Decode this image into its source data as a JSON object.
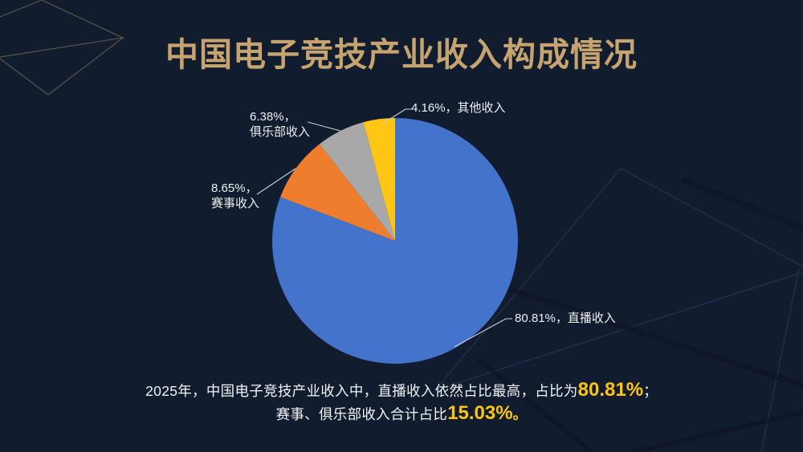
{
  "title": "中国电子竞技产业收入构成情况",
  "chart_data": {
    "type": "pie",
    "title": "中国电子竞技产业收入构成情况",
    "start_angle_deg": -90,
    "direction": "clockwise",
    "unit": "%",
    "series": [
      {
        "label": "直播收入",
        "value": 80.81,
        "color": "#4373CB"
      },
      {
        "label": "赛事收入",
        "value": 8.65,
        "color": "#EF7D2E"
      },
      {
        "label": "俱乐部收入",
        "value": 6.38,
        "color": "#A8A8A8"
      },
      {
        "label": "其他收入",
        "value": 4.16,
        "color": "#FFC615"
      }
    ],
    "callouts": {
      "live": "80.81%，直播收入",
      "match": "8.65%，\n赛事收入",
      "club": "6.38%，\n俱乐部收入",
      "other": "4.16%，其他收入"
    },
    "legend": "none",
    "data_labels": "outside-with-leader-lines"
  },
  "caption": {
    "line1_prefix": "2025年，中国电子竞技产业收入中，直播收入依然占比最高，占比为",
    "line1_value": "80.81%",
    "line1_suffix": "；",
    "line2_prefix": "赛事、俱乐部收入合计占比",
    "line2_value": "15.03%",
    "line2_suffix": "。"
  },
  "colors": {
    "background": "#121C2F",
    "title_gold": "#C6A36F",
    "label_text": "#EDEFF2",
    "leader_line": "#C9CFD8",
    "highlight": "#FFC512",
    "decor_gold": "#A98C5F",
    "decor_light": "#263350",
    "decor_dark": "#0B1222"
  }
}
